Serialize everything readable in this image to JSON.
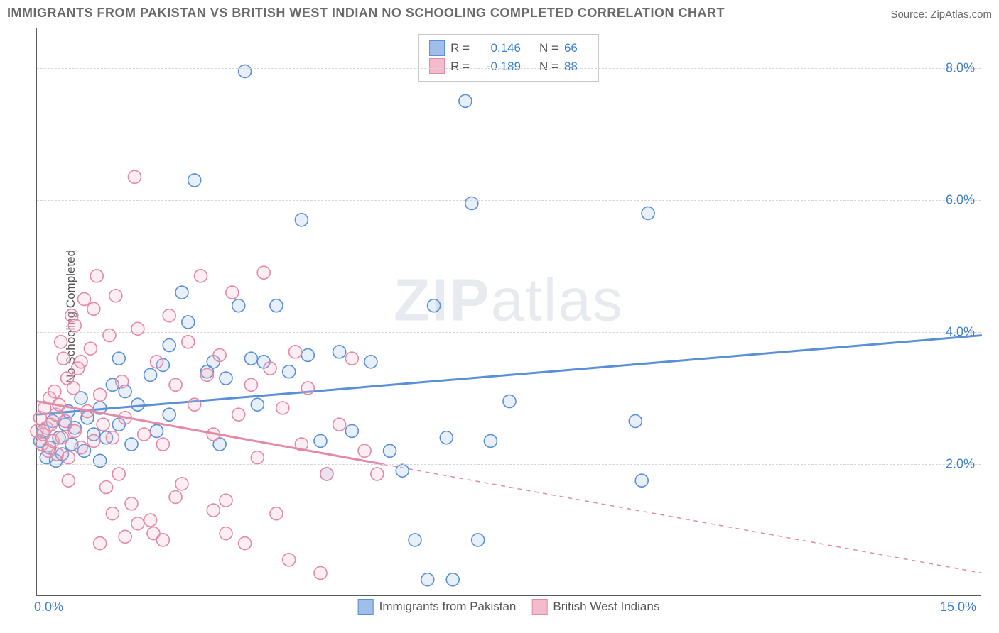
{
  "title": "IMMIGRANTS FROM PAKISTAN VS BRITISH WEST INDIAN NO SCHOOLING COMPLETED CORRELATION CHART",
  "source": "Source: ZipAtlas.com",
  "ylabel": "No Schooling Completed",
  "watermark_a": "ZIP",
  "watermark_b": "atlas",
  "chart": {
    "type": "scatter",
    "xlim": [
      0,
      15
    ],
    "ylim": [
      0,
      8.6
    ],
    "xticks": [
      {
        "v": 0,
        "label": "0.0%"
      },
      {
        "v": 15,
        "label": "15.0%"
      }
    ],
    "yticks": [
      {
        "v": 2,
        "label": "2.0%"
      },
      {
        "v": 4,
        "label": "4.0%"
      },
      {
        "v": 6,
        "label": "6.0%"
      },
      {
        "v": 8,
        "label": "8.0%"
      }
    ],
    "grid_color": "#d7d7d7",
    "background_color": "#ffffff",
    "marker_radius": 9,
    "marker_stroke_width": 1.6,
    "marker_fill_opacity": 0.25,
    "trend_line_width": 3,
    "series": [
      {
        "id": "pakistan",
        "label": "Immigrants from Pakistan",
        "R": "0.146",
        "N": "66",
        "color_stroke": "#5b8fd6",
        "color_fill": "#9fbee8",
        "trend": {
          "x0": 0,
          "y0": 2.75,
          "x1": 15,
          "y1": 3.95,
          "solid_until_x": 15
        },
        "points": [
          [
            0.05,
            2.35
          ],
          [
            0.1,
            2.5
          ],
          [
            0.15,
            2.1
          ],
          [
            0.2,
            2.25
          ],
          [
            0.25,
            2.65
          ],
          [
            0.3,
            2.05
          ],
          [
            0.35,
            2.4
          ],
          [
            0.4,
            2.15
          ],
          [
            0.45,
            2.6
          ],
          [
            0.5,
            2.8
          ],
          [
            0.55,
            2.3
          ],
          [
            0.6,
            2.55
          ],
          [
            0.7,
            3.0
          ],
          [
            0.75,
            2.2
          ],
          [
            0.8,
            2.7
          ],
          [
            0.9,
            2.45
          ],
          [
            1.0,
            2.85
          ],
          [
            1.1,
            2.4
          ],
          [
            1.2,
            3.2
          ],
          [
            1.3,
            2.6
          ],
          [
            1.4,
            3.1
          ],
          [
            1.5,
            2.3
          ],
          [
            1.6,
            2.9
          ],
          [
            1.8,
            3.35
          ],
          [
            1.9,
            2.5
          ],
          [
            2.0,
            3.5
          ],
          [
            2.1,
            2.75
          ],
          [
            2.3,
            4.6
          ],
          [
            2.4,
            4.15
          ],
          [
            2.5,
            6.3
          ],
          [
            2.7,
            3.4
          ],
          [
            2.8,
            3.55
          ],
          [
            3.0,
            3.3
          ],
          [
            3.2,
            4.4
          ],
          [
            3.3,
            7.95
          ],
          [
            3.4,
            3.6
          ],
          [
            3.5,
            2.9
          ],
          [
            3.6,
            3.55
          ],
          [
            3.8,
            4.4
          ],
          [
            4.0,
            3.4
          ],
          [
            4.2,
            5.7
          ],
          [
            4.3,
            3.65
          ],
          [
            4.5,
            2.35
          ],
          [
            4.6,
            1.85
          ],
          [
            4.8,
            3.7
          ],
          [
            5.0,
            2.5
          ],
          [
            5.3,
            3.55
          ],
          [
            5.6,
            2.2
          ],
          [
            5.8,
            1.9
          ],
          [
            6.0,
            0.85
          ],
          [
            6.2,
            0.25
          ],
          [
            6.3,
            4.4
          ],
          [
            6.5,
            2.4
          ],
          [
            6.6,
            0.25
          ],
          [
            6.8,
            7.5
          ],
          [
            6.9,
            5.95
          ],
          [
            7.0,
            0.85
          ],
          [
            7.2,
            2.35
          ],
          [
            7.5,
            2.95
          ],
          [
            9.5,
            2.65
          ],
          [
            9.6,
            1.75
          ],
          [
            9.7,
            5.8
          ],
          [
            1.0,
            2.05
          ],
          [
            1.3,
            3.6
          ],
          [
            2.1,
            3.8
          ],
          [
            2.9,
            2.3
          ]
        ]
      },
      {
        "id": "bwi",
        "label": "British West Indians",
        "R": "-0.189",
        "N": "88",
        "color_stroke": "#e48aa5",
        "color_fill": "#f4bccb",
        "trend": {
          "x0": 0,
          "y0": 2.95,
          "x1": 15,
          "y1": 0.35,
          "solid_until_x": 5.5
        },
        "points": [
          [
            0.0,
            2.5
          ],
          [
            0.05,
            2.7
          ],
          [
            0.08,
            2.3
          ],
          [
            0.1,
            2.45
          ],
          [
            0.12,
            2.85
          ],
          [
            0.15,
            2.55
          ],
          [
            0.18,
            2.2
          ],
          [
            0.2,
            3.0
          ],
          [
            0.22,
            2.6
          ],
          [
            0.25,
            2.35
          ],
          [
            0.28,
            3.1
          ],
          [
            0.3,
            2.75
          ],
          [
            0.32,
            2.15
          ],
          [
            0.35,
            2.9
          ],
          [
            0.38,
            3.85
          ],
          [
            0.4,
            2.4
          ],
          [
            0.42,
            3.6
          ],
          [
            0.45,
            2.65
          ],
          [
            0.48,
            3.3
          ],
          [
            0.5,
            2.1
          ],
          [
            0.55,
            4.25
          ],
          [
            0.58,
            3.15
          ],
          [
            0.6,
            2.5
          ],
          [
            0.65,
            3.45
          ],
          [
            0.7,
            2.25
          ],
          [
            0.75,
            4.5
          ],
          [
            0.8,
            2.8
          ],
          [
            0.85,
            3.75
          ],
          [
            0.9,
            2.35
          ],
          [
            0.95,
            4.85
          ],
          [
            1.0,
            3.05
          ],
          [
            1.05,
            2.6
          ],
          [
            1.1,
            1.65
          ],
          [
            1.15,
            3.95
          ],
          [
            1.2,
            2.4
          ],
          [
            1.25,
            4.55
          ],
          [
            1.3,
            1.85
          ],
          [
            1.35,
            3.25
          ],
          [
            1.4,
            2.7
          ],
          [
            1.5,
            1.4
          ],
          [
            1.55,
            6.35
          ],
          [
            1.6,
            4.05
          ],
          [
            1.7,
            2.45
          ],
          [
            1.8,
            1.15
          ],
          [
            1.85,
            0.95
          ],
          [
            1.9,
            3.55
          ],
          [
            2.0,
            2.3
          ],
          [
            2.1,
            4.25
          ],
          [
            2.2,
            3.2
          ],
          [
            2.3,
            1.7
          ],
          [
            2.4,
            3.85
          ],
          [
            2.5,
            2.9
          ],
          [
            2.6,
            4.85
          ],
          [
            2.7,
            3.35
          ],
          [
            2.8,
            2.45
          ],
          [
            2.9,
            3.65
          ],
          [
            3.0,
            1.45
          ],
          [
            3.1,
            4.6
          ],
          [
            3.2,
            2.75
          ],
          [
            3.3,
            0.8
          ],
          [
            3.4,
            3.2
          ],
          [
            3.5,
            2.1
          ],
          [
            3.6,
            4.9
          ],
          [
            3.7,
            3.45
          ],
          [
            3.8,
            1.25
          ],
          [
            3.9,
            2.85
          ],
          [
            4.0,
            0.55
          ],
          [
            4.1,
            3.7
          ],
          [
            4.2,
            2.3
          ],
          [
            4.3,
            3.15
          ],
          [
            4.5,
            0.35
          ],
          [
            4.6,
            1.85
          ],
          [
            4.8,
            2.6
          ],
          [
            5.0,
            3.6
          ],
          [
            5.2,
            2.2
          ],
          [
            5.4,
            1.85
          ],
          [
            1.0,
            0.8
          ],
          [
            1.2,
            1.25
          ],
          [
            1.4,
            0.9
          ],
          [
            1.6,
            1.1
          ],
          [
            2.0,
            0.85
          ],
          [
            2.2,
            1.5
          ],
          [
            2.8,
            1.3
          ],
          [
            3.0,
            0.95
          ],
          [
            0.6,
            4.1
          ],
          [
            0.7,
            3.55
          ],
          [
            0.9,
            4.35
          ],
          [
            0.5,
            1.75
          ]
        ]
      }
    ]
  },
  "stats_legend": {
    "r_label": "R =",
    "n_label": "N ="
  }
}
